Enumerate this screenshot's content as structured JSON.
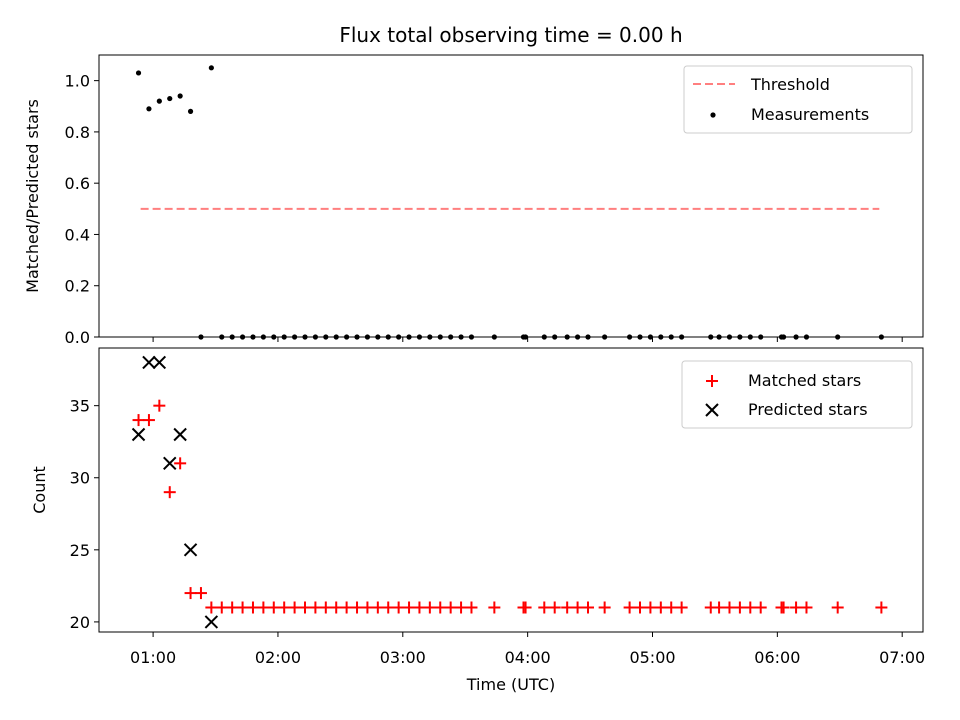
{
  "chart_data": [
    {
      "type": "scatter",
      "title": "Flux total observing time = 0.00 h",
      "xlabel": "",
      "ylabel": "Matched/Predicted stars",
      "xlim": [
        "00:34",
        "07:10"
      ],
      "ylim": [
        0.0,
        1.1
      ],
      "yticks": [
        "0.0",
        "0.2",
        "0.4",
        "0.6",
        "0.8",
        "1.0"
      ],
      "legend_position": "top-right",
      "colors": {
        "threshold": "#ff7f7f",
        "measurements": "#000000"
      },
      "threshold": {
        "name": "Threshold",
        "value": 0.5,
        "x": [
          "00:54",
          "06:49"
        ]
      },
      "measurements": {
        "name": "Measurements",
        "x": [
          "00:53",
          "00:58",
          "01:03",
          "01:08",
          "01:13",
          "01:18",
          "01:23",
          "01:28",
          "01:33",
          "01:38",
          "01:43",
          "01:48",
          "01:53",
          "01:58",
          "02:03",
          "02:08",
          "02:13",
          "02:18",
          "02:23",
          "02:28",
          "02:33",
          "02:38",
          "02:43",
          "02:48",
          "02:53",
          "02:58",
          "03:03",
          "03:08",
          "03:13",
          "03:18",
          "03:23",
          "03:28",
          "03:33",
          "03:44",
          "03:58",
          "03:59",
          "04:08",
          "04:13",
          "04:19",
          "04:24",
          "04:29",
          "04:37",
          "04:49",
          "04:54",
          "04:59",
          "05:04",
          "05:09",
          "05:14",
          "05:28",
          "05:32",
          "05:37",
          "05:42",
          "05:47",
          "05:52",
          "06:02",
          "06:03",
          "06:09",
          "06:14",
          "06:29",
          "06:50"
        ],
        "y": [
          1.03,
          0.89,
          0.92,
          0.93,
          0.94,
          0.88,
          0.0,
          1.05,
          0.0,
          0.0,
          0.0,
          0.0,
          0.0,
          0.0,
          0.0,
          0.0,
          0.0,
          0.0,
          0.0,
          0.0,
          0.0,
          0.0,
          0.0,
          0.0,
          0.0,
          0.0,
          0.0,
          0.0,
          0.0,
          0.0,
          0.0,
          0.0,
          0.0,
          0.0,
          0.0,
          0.0,
          0.0,
          0.0,
          0.0,
          0.0,
          0.0,
          0.0,
          0.0,
          0.0,
          0.0,
          0.0,
          0.0,
          0.0,
          0.0,
          0.0,
          0.0,
          0.0,
          0.0,
          0.0,
          0.0,
          0.0,
          0.0,
          0.0,
          0.0,
          0.0
        ]
      }
    },
    {
      "type": "scatter",
      "title": "",
      "xlabel": "Time (UTC)",
      "ylabel": "Count",
      "xlim": [
        "00:34",
        "07:10"
      ],
      "ylim": [
        19.3,
        39.0
      ],
      "xticks": [
        "01:00",
        "02:00",
        "03:00",
        "04:00",
        "05:00",
        "06:00",
        "07:00"
      ],
      "yticks": [
        "20",
        "25",
        "30",
        "35"
      ],
      "legend_position": "top-right",
      "colors": {
        "matched": "#ff0000",
        "predicted": "#000000"
      },
      "series": [
        {
          "name": "Matched stars",
          "marker": "plus",
          "x": [
            "00:53",
            "00:58",
            "01:03",
            "01:08",
            "01:13",
            "01:18",
            "01:23",
            "01:28",
            "01:33",
            "01:38",
            "01:43",
            "01:48",
            "01:53",
            "01:58",
            "02:03",
            "02:08",
            "02:13",
            "02:18",
            "02:23",
            "02:28",
            "02:33",
            "02:38",
            "02:43",
            "02:48",
            "02:53",
            "02:58",
            "03:03",
            "03:08",
            "03:13",
            "03:18",
            "03:23",
            "03:28",
            "03:33",
            "03:44",
            "03:58",
            "03:59",
            "04:08",
            "04:13",
            "04:19",
            "04:24",
            "04:29",
            "04:37",
            "04:49",
            "04:54",
            "04:59",
            "05:04",
            "05:09",
            "05:14",
            "05:28",
            "05:32",
            "05:37",
            "05:42",
            "05:47",
            "05:52",
            "06:02",
            "06:03",
            "06:09",
            "06:14",
            "06:29",
            "06:50"
          ],
          "values": [
            34,
            34,
            35,
            29,
            31,
            22,
            22,
            21,
            21,
            21,
            21,
            21,
            21,
            21,
            21,
            21,
            21,
            21,
            21,
            21,
            21,
            21,
            21,
            21,
            21,
            21,
            21,
            21,
            21,
            21,
            21,
            21,
            21,
            21,
            21,
            21,
            21,
            21,
            21,
            21,
            21,
            21,
            21,
            21,
            21,
            21,
            21,
            21,
            21,
            21,
            21,
            21,
            21,
            21,
            21,
            21,
            21,
            21,
            21,
            21
          ]
        },
        {
          "name": "Predicted stars",
          "marker": "x",
          "x": [
            "00:53",
            "00:58",
            "01:03",
            "01:08",
            "01:13",
            "01:18",
            "01:28"
          ],
          "values": [
            33,
            38,
            38,
            31,
            33,
            25,
            20
          ]
        }
      ]
    }
  ]
}
